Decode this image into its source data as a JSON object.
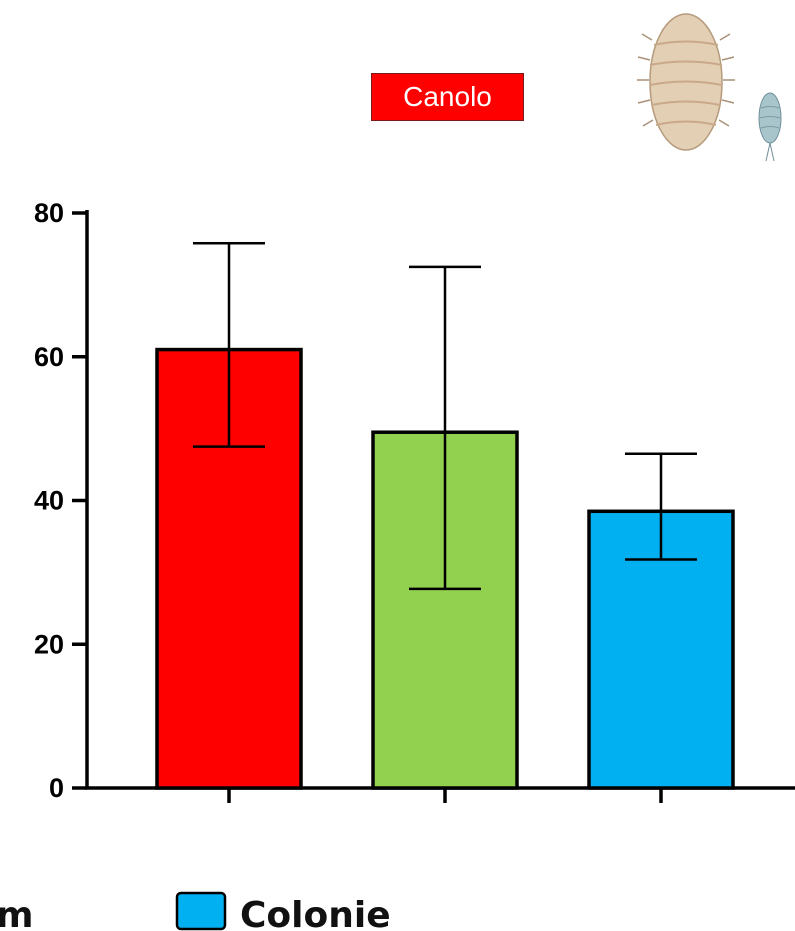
{
  "tag": {
    "label": "Canolo",
    "color": "#ff0000"
  },
  "chart_data": {
    "type": "bar",
    "categories": [
      "",
      "",
      ""
    ],
    "values": [
      61,
      49.5,
      38.5
    ],
    "errors": [
      {
        "low": 47.5,
        "high": 75.8
      },
      {
        "low": 27.7,
        "high": 72.5
      },
      {
        "low": 31.8,
        "high": 46.5
      }
    ],
    "colors": [
      "#ff0000",
      "#92d050",
      "#00b0f0"
    ],
    "ylim": [
      0,
      80
    ],
    "yticks": [
      0,
      20,
      40,
      60,
      80
    ],
    "xlabel": "",
    "ylabel": "",
    "title": "",
    "legend": [
      {
        "label": "m",
        "color": "#92d050"
      },
      {
        "label": "Colonie",
        "color": "#00b0f0"
      }
    ],
    "legend_position": "bottom"
  },
  "icons": {
    "insect_large": "mealybug-icon",
    "insect_small": "mealybug-small-icon"
  }
}
